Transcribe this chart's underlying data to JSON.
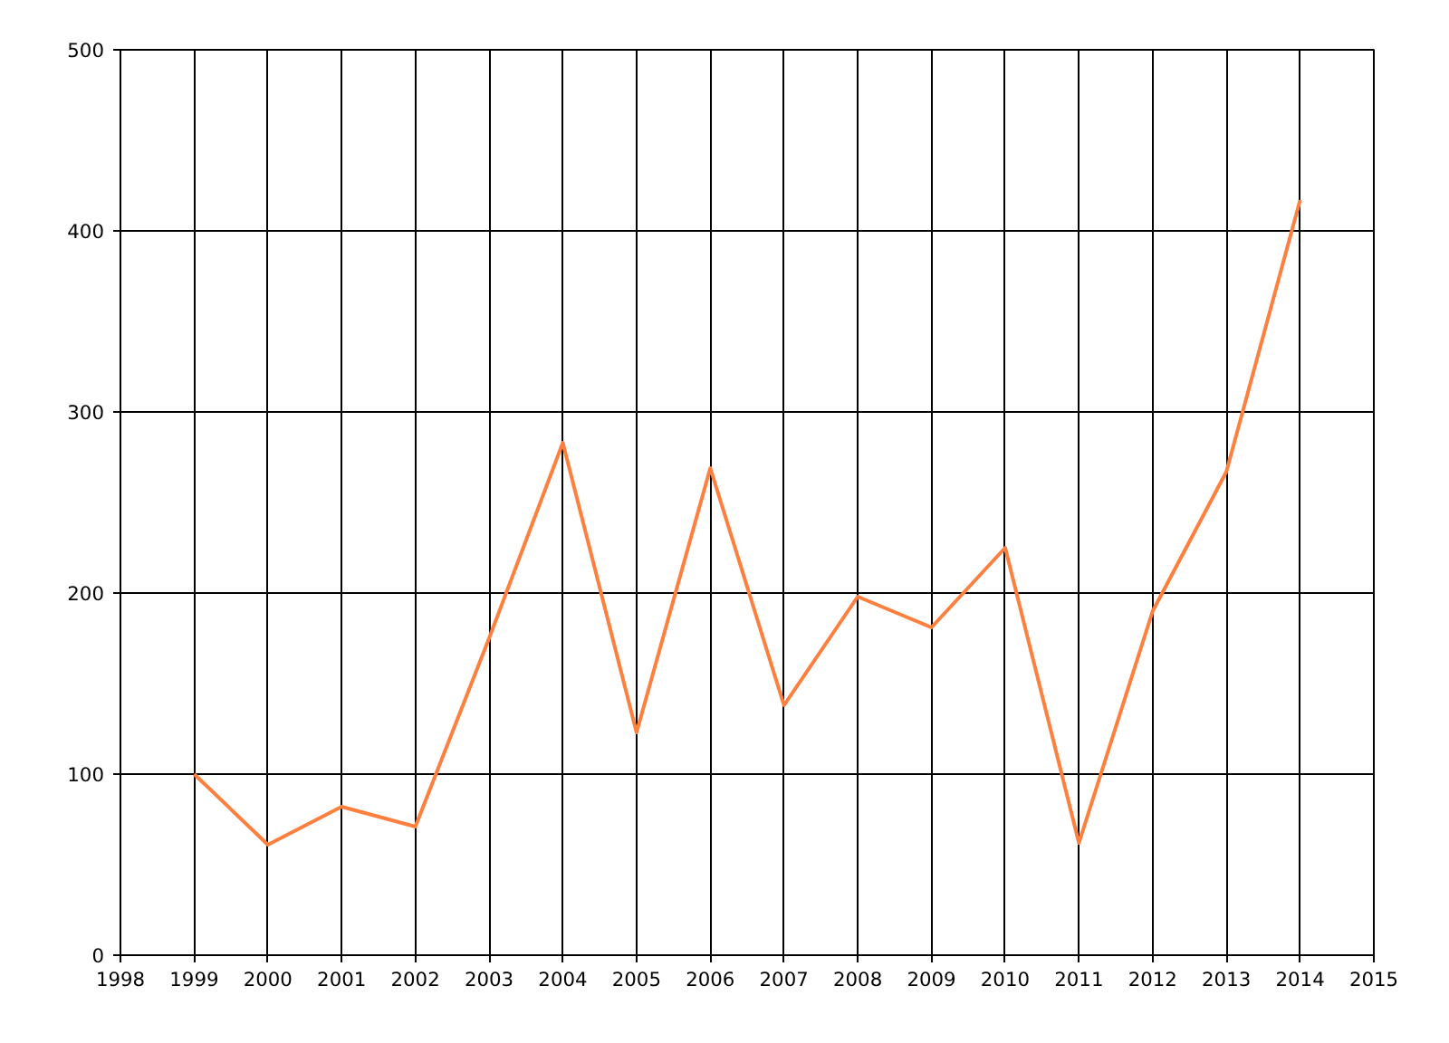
{
  "chart_data": {
    "type": "line",
    "x": [
      1999,
      2000,
      2001,
      2002,
      2003,
      2004,
      2005,
      2006,
      2007,
      2008,
      2009,
      2010,
      2011,
      2012,
      2013,
      2014
    ],
    "series": [
      {
        "color": "#ff7f3f",
        "values": [
          100,
          61,
          82,
          71,
          175,
          283,
          123,
          269,
          138,
          198,
          181,
          225,
          62,
          190,
          267,
          417
        ]
      }
    ],
    "xlim": [
      1998,
      2015
    ],
    "xticks": [
      1998,
      1999,
      2000,
      2001,
      2002,
      2003,
      2004,
      2005,
      2006,
      2007,
      2008,
      2009,
      2010,
      2011,
      2012,
      2013,
      2014,
      2015
    ],
    "ylim": [
      0,
      500
    ],
    "yticks": [
      0,
      100,
      200,
      300,
      400,
      500
    ],
    "grid": true,
    "marker": "none",
    "line_style": "solid"
  }
}
